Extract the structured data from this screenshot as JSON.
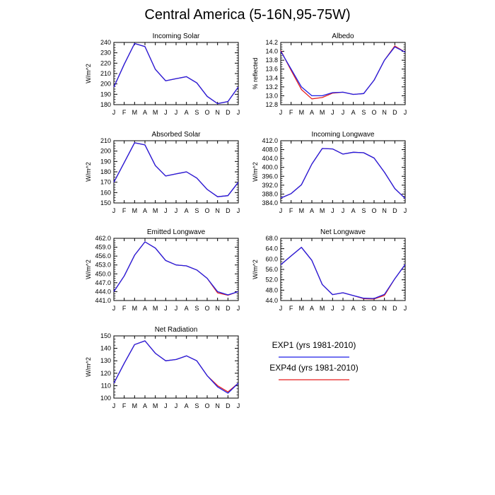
{
  "title": "Central America (5-16N,95-75W)",
  "colors": {
    "exp1": "#1f1fe6",
    "exp4d": "#e61f1f"
  },
  "legend": [
    {
      "label": "EXP1 (yrs 1981-2010)",
      "color_key": "exp1"
    },
    {
      "label": "EXP4d (yrs 1981-2010)",
      "color_key": "exp4d"
    }
  ],
  "chart_data": [
    {
      "type": "line",
      "title": "Incoming Solar",
      "ylabel": "W/m^2",
      "categories": [
        "J",
        "F",
        "M",
        "A",
        "M",
        "J",
        "J",
        "A",
        "S",
        "O",
        "N",
        "D",
        "J"
      ],
      "ylim": [
        180,
        240
      ],
      "yticks": [
        180,
        190,
        200,
        210,
        220,
        230,
        240
      ],
      "ytick_labels": [
        "180",
        "190",
        "200",
        "210",
        "220",
        "230",
        "240"
      ],
      "series": [
        {
          "name": "EXP1 (yrs 1981-2010)",
          "color_key": "exp1",
          "values": [
            197,
            219,
            239,
            236,
            214,
            203,
            205,
            207,
            201,
            188,
            181,
            183,
            197
          ]
        },
        {
          "name": "EXP4d (yrs 1981-2010)",
          "color_key": "exp4d",
          "values": [
            197,
            219,
            239,
            236,
            214,
            203,
            205,
            207,
            201,
            188,
            181,
            183,
            197
          ]
        }
      ]
    },
    {
      "type": "line",
      "title": "Albedo",
      "ylabel": "% reflected",
      "categories": [
        "J",
        "F",
        "M",
        "A",
        "M",
        "J",
        "J",
        "A",
        "S",
        "O",
        "N",
        "D",
        "J"
      ],
      "ylim": [
        12.8,
        14.2
      ],
      "yticks": [
        12.8,
        13.0,
        13.2,
        13.4,
        13.6,
        13.8,
        14.0,
        14.2
      ],
      "ytick_labels": [
        "12.8",
        "13.0",
        "13.2",
        "13.4",
        "13.6",
        "13.8",
        "14.0",
        "14.2"
      ],
      "series": [
        {
          "name": "EXP1 (yrs 1981-2010)",
          "color_key": "exp1",
          "values": [
            14.0,
            13.6,
            13.2,
            13.0,
            13.0,
            13.07,
            13.08,
            13.03,
            13.05,
            13.35,
            13.8,
            14.1,
            13.98
          ]
        },
        {
          "name": "EXP4d (yrs 1981-2010)",
          "color_key": "exp4d",
          "values": [
            14.02,
            13.57,
            13.14,
            12.93,
            12.96,
            13.06,
            13.08,
            13.03,
            13.05,
            13.35,
            13.8,
            14.12,
            13.98
          ]
        }
      ]
    },
    {
      "type": "line",
      "title": "Absorbed Solar",
      "ylabel": "W/m^2",
      "categories": [
        "J",
        "F",
        "M",
        "A",
        "M",
        "J",
        "J",
        "A",
        "S",
        "O",
        "N",
        "D",
        "J"
      ],
      "ylim": [
        150,
        210
      ],
      "yticks": [
        150,
        160,
        170,
        180,
        190,
        200,
        210
      ],
      "ytick_labels": [
        "150",
        "160",
        "170",
        "180",
        "190",
        "200",
        "210"
      ],
      "series": [
        {
          "name": "EXP1 (yrs 1981-2010)",
          "color_key": "exp1",
          "values": [
            170,
            189,
            208,
            206,
            186,
            176,
            178,
            180,
            174,
            163,
            156,
            157,
            170
          ]
        },
        {
          "name": "EXP4d (yrs 1981-2010)",
          "color_key": "exp4d",
          "values": [
            170,
            189,
            208,
            206,
            186,
            176,
            178,
            180,
            174,
            163,
            156,
            157,
            170
          ]
        }
      ]
    },
    {
      "type": "line",
      "title": "Incoming Longwave",
      "ylabel": "W/m^2",
      "categories": [
        "J",
        "F",
        "M",
        "A",
        "M",
        "J",
        "J",
        "A",
        "S",
        "O",
        "N",
        "D",
        "J"
      ],
      "ylim": [
        384.0,
        412.0
      ],
      "yticks": [
        384,
        388,
        392,
        396,
        400,
        404,
        408,
        412
      ],
      "ytick_labels": [
        "384.0",
        "388.0",
        "392.0",
        "396.0",
        "400.0",
        "404.0",
        "408.0",
        "412.0"
      ],
      "series": [
        {
          "name": "EXP1 (yrs 1981-2010)",
          "color_key": "exp1",
          "values": [
            386.2,
            388.2,
            392.2,
            401.5,
            408.5,
            408.3,
            406.0,
            406.8,
            406.6,
            404.2,
            397.8,
            390.5,
            386.0
          ]
        },
        {
          "name": "EXP4d (yrs 1981-2010)",
          "color_key": "exp4d",
          "values": [
            386.2,
            388.2,
            392.2,
            401.5,
            408.5,
            408.3,
            406.0,
            406.8,
            406.6,
            404.2,
            397.8,
            390.5,
            386.0
          ]
        }
      ]
    },
    {
      "type": "line",
      "title": "Emitted Longwave",
      "ylabel": "W/m^2",
      "categories": [
        "J",
        "F",
        "M",
        "A",
        "M",
        "J",
        "J",
        "A",
        "S",
        "O",
        "N",
        "D",
        "J"
      ],
      "ylim": [
        441.0,
        462.0
      ],
      "yticks": [
        441,
        444,
        447,
        450,
        453,
        456,
        459,
        462
      ],
      "ytick_labels": [
        "441.0",
        "444.0",
        "447.0",
        "450.0",
        "453.0",
        "456.0",
        "459.0",
        "462.0"
      ],
      "series": [
        {
          "name": "EXP1 (yrs 1981-2010)",
          "color_key": "exp1",
          "values": [
            444.0,
            449.3,
            456.3,
            460.8,
            458.7,
            454.5,
            453.0,
            452.7,
            451.3,
            448.5,
            444.0,
            442.9,
            444.0
          ]
        },
        {
          "name": "EXP4d (yrs 1981-2010)",
          "color_key": "exp4d",
          "values": [
            444.0,
            449.3,
            456.3,
            460.8,
            458.7,
            454.5,
            453.0,
            452.7,
            451.3,
            448.5,
            443.6,
            442.8,
            444.0
          ]
        }
      ]
    },
    {
      "type": "line",
      "title": "Net Longwave",
      "ylabel": "W/m^2",
      "categories": [
        "J",
        "F",
        "M",
        "A",
        "M",
        "J",
        "J",
        "A",
        "S",
        "O",
        "N",
        "D",
        "J"
      ],
      "ylim": [
        44.0,
        68.0
      ],
      "yticks": [
        44,
        48,
        52,
        56,
        60,
        64,
        68
      ],
      "ytick_labels": [
        "44.0",
        "48.0",
        "52.0",
        "56.0",
        "60.0",
        "64.0",
        "68.0"
      ],
      "series": [
        {
          "name": "EXP1 (yrs 1981-2010)",
          "color_key": "exp1",
          "values": [
            57.8,
            61.2,
            64.5,
            59.5,
            50.2,
            46.3,
            47.0,
            45.9,
            44.9,
            44.8,
            46.4,
            52.4,
            57.9
          ]
        },
        {
          "name": "EXP4d (yrs 1981-2010)",
          "color_key": "exp4d",
          "values": [
            57.8,
            61.2,
            64.5,
            59.5,
            50.2,
            46.3,
            47.0,
            45.9,
            44.7,
            44.6,
            46.0,
            52.4,
            57.9
          ]
        }
      ]
    },
    {
      "type": "line",
      "title": "Net Radiation",
      "ylabel": "W/m^2",
      "categories": [
        "J",
        "F",
        "M",
        "A",
        "M",
        "J",
        "J",
        "A",
        "S",
        "O",
        "N",
        "D",
        "J"
      ],
      "ylim": [
        100,
        150
      ],
      "yticks": [
        100,
        110,
        120,
        130,
        140,
        150
      ],
      "ytick_labels": [
        "100",
        "110",
        "120",
        "130",
        "140",
        "150"
      ],
      "series": [
        {
          "name": "EXP1 (yrs 1981-2010)",
          "color_key": "exp1",
          "values": [
            112,
            128,
            143,
            146,
            136,
            130,
            131,
            134,
            130,
            118,
            109,
            104,
            112
          ]
        },
        {
          "name": "EXP4d (yrs 1981-2010)",
          "color_key": "exp4d",
          "values": [
            112,
            128,
            143,
            146,
            136,
            130,
            131,
            134,
            130,
            118,
            110,
            105,
            112
          ]
        }
      ]
    }
  ]
}
